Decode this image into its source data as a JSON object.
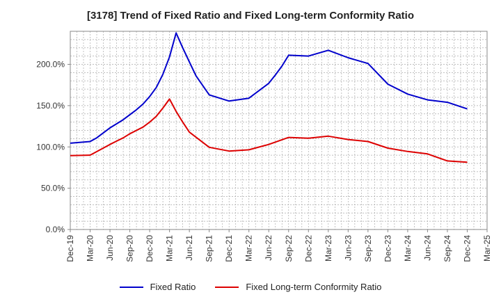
{
  "chart_data": {
    "type": "line",
    "title": "[3178]  Trend of Fixed Ratio and Fixed Long-term Conformity Ratio",
    "xlabel": "",
    "ylabel": "",
    "x_tick_labels": [
      "Dec-19",
      "Mar-20",
      "Jun-20",
      "Sep-20",
      "Dec-20",
      "Mar-21",
      "Jun-21",
      "Sep-21",
      "Dec-21",
      "Mar-22",
      "Jun-22",
      "Sep-22",
      "Dec-22",
      "Mar-23",
      "Jun-23",
      "Sep-23",
      "Dec-23",
      "Mar-24",
      "Jun-24",
      "Sep-24",
      "Dec-24",
      "Mar-25"
    ],
    "y_tick_labels": [
      "0.0%",
      "50.0%",
      "100.0%",
      "150.0%",
      "200.0%"
    ],
    "y_ticks": [
      0,
      50,
      100,
      150,
      200
    ],
    "ylim": [
      0,
      240
    ],
    "grid": true,
    "legend_position": "bottom",
    "series": [
      {
        "name": "Fixed Ratio",
        "color": "#0000cc",
        "points": [
          [
            "Dec-19",
            104.5
          ],
          [
            "Mar-20",
            106.5
          ],
          [
            "Apr-20",
            111
          ],
          [
            "May-20",
            117
          ],
          [
            "Jun-20",
            123
          ],
          [
            "Jul-20",
            128
          ],
          [
            "Aug-20",
            133
          ],
          [
            "Sep-20",
            139
          ],
          [
            "Oct-20",
            145
          ],
          [
            "Nov-20",
            152
          ],
          [
            "Dec-20",
            161
          ],
          [
            "Jan-21",
            172
          ],
          [
            "Feb-21",
            188
          ],
          [
            "Mar-21",
            209
          ],
          [
            "Apr-21",
            238
          ],
          [
            "May-21",
            220
          ],
          [
            "Jun-21",
            203
          ],
          [
            "Jul-21",
            186
          ],
          [
            "Sep-21",
            163
          ],
          [
            "Dec-21",
            155.5
          ],
          [
            "Mar-22",
            159
          ],
          [
            "Jun-22",
            177
          ],
          [
            "Jul-22",
            187
          ],
          [
            "Aug-22",
            198
          ],
          [
            "Sep-22",
            211
          ],
          [
            "Dec-22",
            210
          ],
          [
            "Mar-23",
            217
          ],
          [
            "Jun-23",
            208
          ],
          [
            "Sep-23",
            201
          ],
          [
            "Dec-23",
            176
          ],
          [
            "Mar-24",
            164
          ],
          [
            "Jun-24",
            157
          ],
          [
            "Sep-24",
            154
          ],
          [
            "Dec-24",
            146
          ]
        ]
      },
      {
        "name": "Fixed Long-term Conformity Ratio",
        "color": "#dd0000",
        "points": [
          [
            "Dec-19",
            89.5
          ],
          [
            "Mar-20",
            90
          ],
          [
            "Jun-20",
            103
          ],
          [
            "Jul-20",
            107
          ],
          [
            "Aug-20",
            111
          ],
          [
            "Sep-20",
            116
          ],
          [
            "Oct-20",
            120
          ],
          [
            "Nov-20",
            124
          ],
          [
            "Dec-20",
            130
          ],
          [
            "Jan-21",
            137
          ],
          [
            "Feb-21",
            147
          ],
          [
            "Mar-21",
            158
          ],
          [
            "Apr-21",
            143
          ],
          [
            "May-21",
            130
          ],
          [
            "Jun-21",
            118
          ],
          [
            "Sep-21",
            99.5
          ],
          [
            "Dec-21",
            95
          ],
          [
            "Mar-22",
            96.5
          ],
          [
            "Jun-22",
            103
          ],
          [
            "Sep-22",
            111.5
          ],
          [
            "Dec-22",
            110.5
          ],
          [
            "Mar-23",
            113
          ],
          [
            "Jun-23",
            109
          ],
          [
            "Sep-23",
            106.5
          ],
          [
            "Dec-23",
            98.5
          ],
          [
            "Mar-24",
            94.5
          ],
          [
            "Jun-24",
            91.5
          ],
          [
            "Sep-24",
            83
          ],
          [
            "Dec-24",
            81.5
          ]
        ]
      }
    ]
  }
}
